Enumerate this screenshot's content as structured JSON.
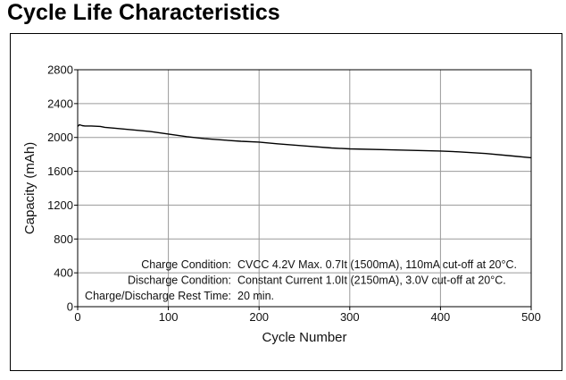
{
  "chart_data": {
    "type": "line",
    "title": "Cycle Life Characteristics",
    "xlabel": "Cycle Number",
    "ylabel": "Capacity (mAh)",
    "xlim": [
      0,
      500
    ],
    "ylim": [
      0,
      2800
    ],
    "x_ticks": [
      0,
      100,
      200,
      300,
      400,
      500
    ],
    "y_ticks": [
      0,
      400,
      800,
      1200,
      1600,
      2000,
      2400,
      2800
    ],
    "grid": true,
    "series": [
      {
        "x": [
          0,
          2,
          5,
          8,
          15,
          25,
          30,
          40,
          60,
          80,
          100,
          120,
          140,
          160,
          180,
          200,
          220,
          250,
          280,
          300,
          340,
          380,
          400,
          420,
          450,
          480,
          500
        ],
        "y": [
          2130,
          2150,
          2140,
          2135,
          2135,
          2130,
          2120,
          2110,
          2090,
          2070,
          2040,
          2010,
          1985,
          1970,
          1955,
          1945,
          1925,
          1900,
          1875,
          1865,
          1855,
          1845,
          1840,
          1830,
          1810,
          1780,
          1760
        ]
      }
    ],
    "annotations": [
      {
        "label": "Charge Condition:",
        "text": "CVCC 4.2V Max. 0.7It (1500mA), 110mA cut-off at 20°C."
      },
      {
        "label": "Discharge Condition:",
        "text": "Constant Current 1.0It (2150mA), 3.0V cut-off at 20°C."
      },
      {
        "label": "Charge/Discharge Rest Time:",
        "text": "20 min."
      }
    ]
  }
}
